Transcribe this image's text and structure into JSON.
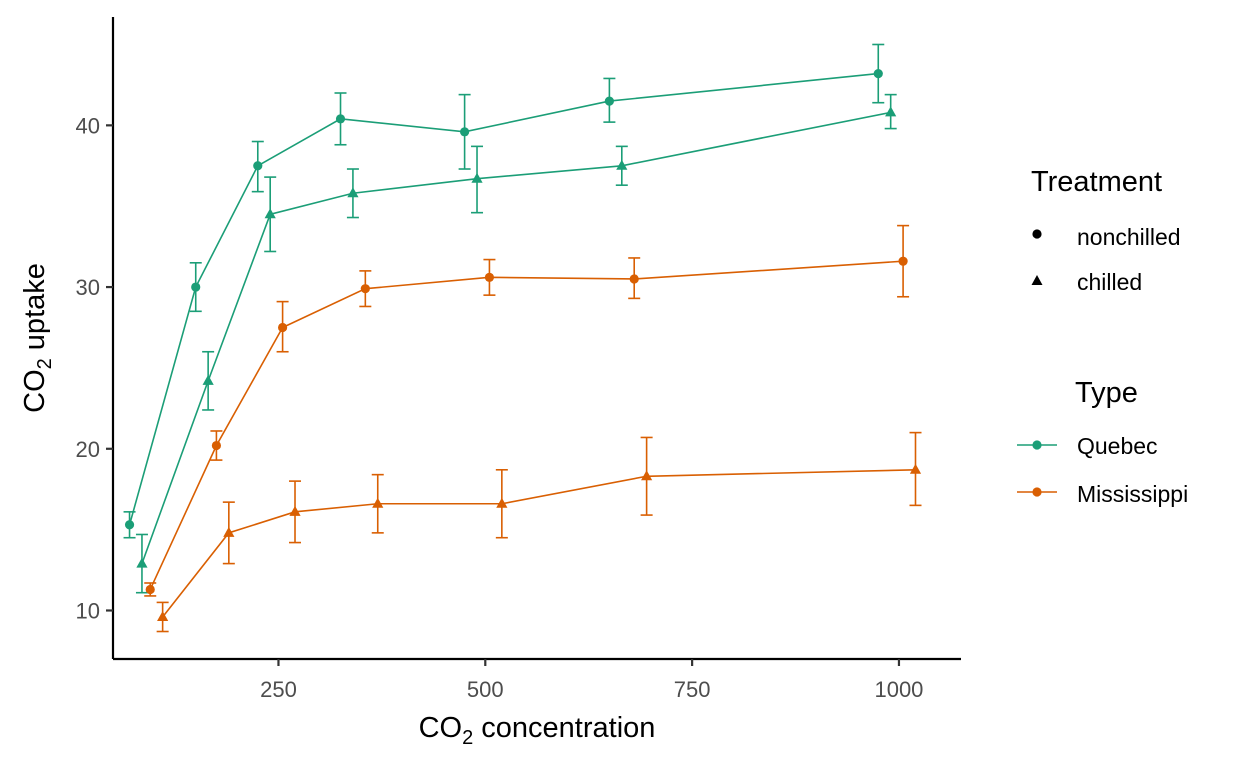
{
  "chart_data": {
    "type": "line",
    "xlabel": {
      "main": "CO",
      "sub": "2",
      "rest": " concentration"
    },
    "ylabel": {
      "main": "CO",
      "sub": "2",
      "rest": " uptake"
    },
    "xlim": [
      50,
      1075
    ],
    "ylim": [
      7.0,
      46.7
    ],
    "x_ticks": [
      250,
      500,
      750,
      1000
    ],
    "x_tick_labels": [
      "250",
      "500",
      "750",
      "1000"
    ],
    "y_ticks": [
      10,
      20,
      30,
      40
    ],
    "y_tick_labels": [
      "10",
      "20",
      "30",
      "40"
    ],
    "grid": false,
    "legend_position": "right",
    "legend_treatment": {
      "title": "Treatment",
      "items": [
        {
          "label": "nonchilled",
          "shape": "circle"
        },
        {
          "label": "chilled",
          "shape": "triangle"
        }
      ]
    },
    "legend_type": {
      "title": "Type",
      "items": [
        {
          "label": "Quebec",
          "color": "#1B9E77"
        },
        {
          "label": "Mississippi",
          "color": "#D95F02"
        }
      ]
    },
    "colors": {
      "Quebec": "#1B9E77",
      "Mississippi": "#D95F02"
    },
    "series": [
      {
        "type": "Quebec",
        "treatment": "nonchilled",
        "shape": "circle",
        "points": [
          {
            "x": 70,
            "y": 15.3,
            "lo": 14.5,
            "hi": 16.1
          },
          {
            "x": 150,
            "y": 30.0,
            "lo": 28.5,
            "hi": 31.5
          },
          {
            "x": 225,
            "y": 37.5,
            "lo": 35.9,
            "hi": 39.0
          },
          {
            "x": 325,
            "y": 40.4,
            "lo": 38.8,
            "hi": 42.0
          },
          {
            "x": 475,
            "y": 39.6,
            "lo": 37.3,
            "hi": 41.9
          },
          {
            "x": 650,
            "y": 41.5,
            "lo": 40.2,
            "hi": 42.9
          },
          {
            "x": 975,
            "y": 43.2,
            "lo": 41.4,
            "hi": 45.0
          }
        ]
      },
      {
        "type": "Quebec",
        "treatment": "chilled",
        "shape": "triangle",
        "points": [
          {
            "x": 85,
            "y": 12.9,
            "lo": 11.1,
            "hi": 14.7
          },
          {
            "x": 165,
            "y": 24.2,
            "lo": 22.4,
            "hi": 26.0
          },
          {
            "x": 240,
            "y": 34.5,
            "lo": 32.2,
            "hi": 36.8
          },
          {
            "x": 340,
            "y": 35.8,
            "lo": 34.3,
            "hi": 37.3
          },
          {
            "x": 490,
            "y": 36.7,
            "lo": 34.6,
            "hi": 38.7
          },
          {
            "x": 665,
            "y": 37.5,
            "lo": 36.3,
            "hi": 38.7
          },
          {
            "x": 990,
            "y": 40.8,
            "lo": 39.8,
            "hi": 41.9
          }
        ]
      },
      {
        "type": "Mississippi",
        "treatment": "nonchilled",
        "shape": "circle",
        "points": [
          {
            "x": 95,
            "y": 11.3,
            "lo": 10.9,
            "hi": 11.7
          },
          {
            "x": 175,
            "y": 20.2,
            "lo": 19.3,
            "hi": 21.1
          },
          {
            "x": 255,
            "y": 27.5,
            "lo": 26.0,
            "hi": 29.1
          },
          {
            "x": 355,
            "y": 29.9,
            "lo": 28.8,
            "hi": 31.0
          },
          {
            "x": 505,
            "y": 30.6,
            "lo": 29.5,
            "hi": 31.7
          },
          {
            "x": 680,
            "y": 30.5,
            "lo": 29.3,
            "hi": 31.8
          },
          {
            "x": 1005,
            "y": 31.6,
            "lo": 29.4,
            "hi": 33.8
          }
        ]
      },
      {
        "type": "Mississippi",
        "treatment": "chilled",
        "shape": "triangle",
        "points": [
          {
            "x": 110,
            "y": 9.6,
            "lo": 8.7,
            "hi": 10.5
          },
          {
            "x": 190,
            "y": 14.8,
            "lo": 12.9,
            "hi": 16.7
          },
          {
            "x": 270,
            "y": 16.1,
            "lo": 14.2,
            "hi": 18.0
          },
          {
            "x": 370,
            "y": 16.6,
            "lo": 14.8,
            "hi": 18.4
          },
          {
            "x": 520,
            "y": 16.6,
            "lo": 14.5,
            "hi": 18.7
          },
          {
            "x": 695,
            "y": 18.3,
            "lo": 15.9,
            "hi": 20.7
          },
          {
            "x": 1020,
            "y": 18.7,
            "lo": 16.5,
            "hi": 21.0
          }
        ]
      }
    ]
  }
}
